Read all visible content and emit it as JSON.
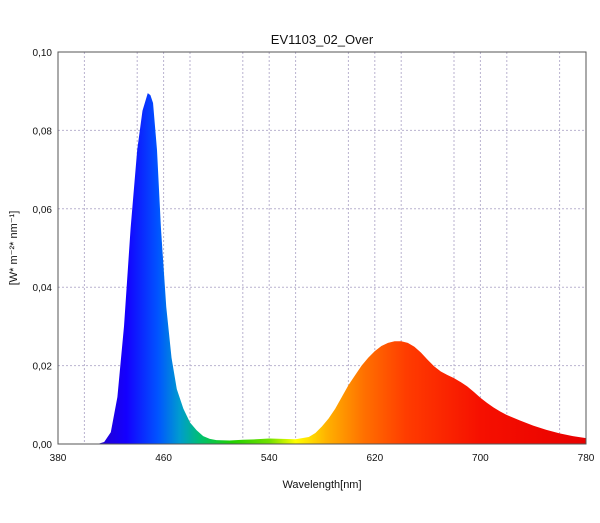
{
  "chart_data": {
    "type": "area",
    "title": "EV1103_02_Over",
    "xlabel": "Wavelength[nm]",
    "ylabel": "[W* m⁻²* nm⁻¹]",
    "xlim": [
      380,
      780
    ],
    "ylim": [
      0,
      0.1
    ],
    "x_ticks": [
      380,
      460,
      540,
      620,
      700,
      780
    ],
    "x_tick_labels": [
      "380",
      "460",
      "540",
      "620",
      "700",
      "780"
    ],
    "y_ticks": [
      0,
      0.02,
      0.04,
      0.06,
      0.08,
      0.1
    ],
    "y_tick_labels": [
      "0,00",
      "0,02",
      "0,04",
      "0,06",
      "0,08",
      "0,10"
    ],
    "grid": true,
    "fill": "spectral wavelength colors",
    "series": [
      {
        "x": [
          380,
          410,
          415,
          420,
          425,
          430,
          435,
          440,
          444,
          448,
          450,
          452,
          455,
          458,
          462,
          466,
          470,
          475,
          480,
          485,
          490,
          495,
          500,
          510,
          520,
          530,
          540,
          550,
          560,
          570,
          575,
          580,
          585,
          590,
          595,
          600,
          605,
          610,
          615,
          620,
          625,
          630,
          635,
          640,
          645,
          650,
          655,
          660,
          665,
          670,
          675,
          680,
          685,
          690,
          695,
          700,
          705,
          710,
          715,
          720,
          730,
          740,
          750,
          760,
          770,
          780
        ],
        "y": [
          0,
          0,
          0.0005,
          0.003,
          0.012,
          0.03,
          0.055,
          0.075,
          0.085,
          0.0895,
          0.089,
          0.087,
          0.075,
          0.055,
          0.035,
          0.022,
          0.014,
          0.009,
          0.0055,
          0.0035,
          0.002,
          0.0013,
          0.001,
          0.0009,
          0.0011,
          0.0012,
          0.0014,
          0.0013,
          0.0012,
          0.0018,
          0.0028,
          0.0045,
          0.0065,
          0.009,
          0.012,
          0.015,
          0.0175,
          0.02,
          0.022,
          0.0237,
          0.025,
          0.0258,
          0.0262,
          0.0262,
          0.0258,
          0.0248,
          0.0233,
          0.0215,
          0.0198,
          0.0185,
          0.0176,
          0.0168,
          0.0158,
          0.0147,
          0.0133,
          0.0118,
          0.0105,
          0.0093,
          0.0083,
          0.0074,
          0.006,
          0.0047,
          0.0036,
          0.0027,
          0.002,
          0.0015
        ]
      }
    ]
  }
}
